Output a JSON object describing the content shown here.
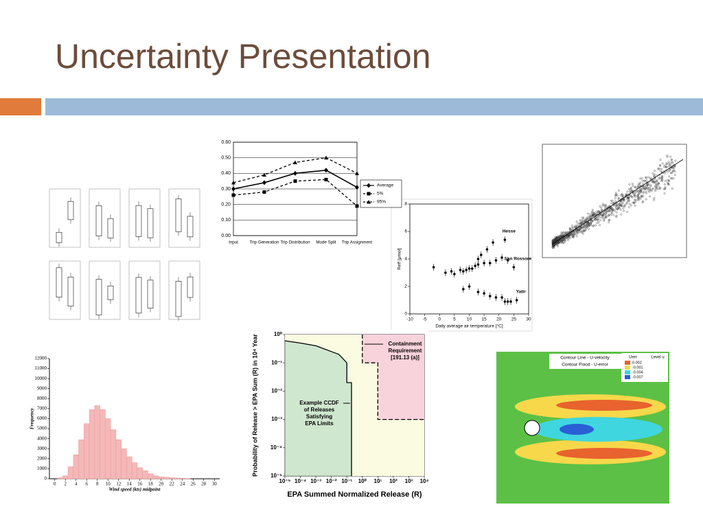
{
  "title": "Uncertainty Presentation",
  "chart_data": [
    {
      "type": "line",
      "categories": [
        "Input",
        "Trip Generation",
        "Trip Distribution",
        "Mode Split",
        "Trip Assignment"
      ],
      "series": [
        {
          "name": "Average",
          "color": "#000000",
          "marker": "diamond",
          "dash": "solid",
          "values": [
            0.3,
            0.34,
            0.4,
            0.42,
            0.31
          ]
        },
        {
          "name": "5%",
          "color": "#000000",
          "marker": "square",
          "dash": "dashed",
          "values": [
            0.26,
            0.28,
            0.35,
            0.36,
            0.19
          ]
        },
        {
          "name": "95%",
          "color": "#000000",
          "marker": "triangle",
          "dash": "dashed",
          "values": [
            0.34,
            0.39,
            0.47,
            0.5,
            0.4
          ]
        }
      ],
      "ylim": [
        0,
        0.6
      ],
      "yticks": [
        {
          "value": 0,
          "label": "0.00"
        },
        {
          "value": 0.1,
          "label": "0.10"
        },
        {
          "value": 0.2,
          "label": "0.20"
        },
        {
          "value": 0.3,
          "label": "0.30"
        },
        {
          "value": 0.4,
          "label": "0.40"
        },
        {
          "value": 0.5,
          "label": "0.50"
        },
        {
          "value": 0.6,
          "label": "0.60"
        }
      ],
      "grid": true,
      "legend": "right"
    },
    {
      "type": "histogram",
      "xlabel": "Wind speed (kts) midpoint",
      "ylabel": "Frequency",
      "color": "#f4b8b8",
      "bins": [
        0.5,
        1.5,
        2.5,
        3.5,
        4.5,
        5.5,
        6.5,
        7.5,
        8.5,
        9.5,
        10.5,
        11.5,
        12.5,
        13.5,
        14.5,
        15.5,
        16.5,
        17.5,
        18.5,
        19.5,
        20.5,
        21.5,
        22.5,
        23.5,
        24.5,
        25.5
      ],
      "values": [
        100,
        300,
        1200,
        2400,
        3900,
        5500,
        6900,
        7300,
        6900,
        6000,
        4900,
        3900,
        3000,
        2200,
        1600,
        1100,
        800,
        500,
        300,
        200,
        150,
        100,
        80,
        50,
        30
      ],
      "xlim": [
        -1,
        31
      ],
      "xticks": [
        0,
        2,
        4,
        6,
        8,
        10,
        12,
        14,
        16,
        18,
        20,
        22,
        24,
        26,
        28,
        30
      ],
      "ylim": [
        0,
        12000
      ],
      "yticks": [
        0,
        1000,
        2000,
        3000,
        4000,
        5000,
        6000,
        7000,
        8000,
        9000,
        10000,
        11000,
        12000
      ]
    },
    {
      "type": "scatter",
      "xlabel": "Daily average air temperature [°C]",
      "ylabel": "Reff [μmol]",
      "series": [
        {
          "name": "Hesse",
          "color": "#000000",
          "x": [
            8,
            10,
            12,
            13,
            14,
            16,
            18,
            22
          ],
          "values": [
            3.1,
            3.3,
            3.5,
            4.0,
            4.3,
            4.7,
            5.2,
            5.4
          ]
        },
        {
          "name": "San Rossore",
          "color": "#000000",
          "x": [
            -2,
            2,
            4,
            5,
            7,
            9,
            11,
            13,
            15,
            17,
            19,
            21,
            23,
            25
          ],
          "values": [
            3.4,
            3.0,
            3.1,
            2.9,
            3.2,
            3.2,
            3.3,
            3.6,
            3.7,
            3.7,
            3.9,
            4.1,
            3.9,
            3.4
          ]
        },
        {
          "name": "Yatir",
          "color": "#000000",
          "x": [
            8,
            10,
            13,
            15,
            17,
            19,
            21,
            22,
            23,
            24,
            26
          ],
          "values": [
            1.8,
            2.0,
            1.6,
            1.5,
            1.3,
            1.2,
            1.2,
            0.9,
            0.9,
            0.9,
            1.0
          ]
        }
      ],
      "xlim": [
        -10,
        30
      ],
      "xticks": [
        -10,
        -5,
        0,
        5,
        10,
        15,
        20,
        25,
        30
      ],
      "ylim": [
        0,
        8
      ],
      "yticks": [
        0,
        2,
        4,
        6,
        8
      ]
    },
    {
      "type": "line",
      "xlabel": "EPA Summed Normalized Release (R)",
      "ylabel": "Probability of Release > EPA Sum (R) in 10⁴ Year",
      "xlog": true,
      "ylog": true,
      "series": [
        {
          "color": "#000000",
          "dash": "solid",
          "x": [
            1e-05,
            0.0001,
            0.001,
            0.01,
            0.03,
            0.05,
            0.1,
            0.1,
            0.2,
            0.2
          ],
          "values": [
            0.6,
            0.5,
            0.4,
            0.25,
            0.2,
            0.15,
            0.1,
            0.02,
            0.02,
            1e-05
          ]
        },
        {
          "color": "#000000",
          "dash": "dashed",
          "x": [
            1,
            1,
            10,
            10,
            10000
          ],
          "values": [
            1,
            0.1,
            0.1,
            0.001,
            0.001
          ]
        }
      ],
      "xlim": [
        1e-05,
        10000
      ],
      "ylim": [
        1e-05,
        1
      ],
      "xticks": [
        {
          "value": 1e-05,
          "label": "10⁻⁵"
        },
        {
          "value": 0.0001,
          "label": "10⁻⁴"
        },
        {
          "value": 0.001,
          "label": "10⁻³"
        },
        {
          "value": 0.01,
          "label": "10⁻²"
        },
        {
          "value": 0.1,
          "label": "10⁻¹"
        },
        {
          "value": 1,
          "label": "10⁰"
        },
        {
          "value": 10,
          "label": "10¹"
        },
        {
          "value": 100,
          "label": "10²"
        },
        {
          "value": 1000,
          "label": "10³"
        },
        {
          "value": 10000,
          "label": "10⁴"
        }
      ],
      "yticks": [
        {
          "value": 1,
          "label": "10⁰"
        },
        {
          "value": 0.1,
          "label": "10⁻¹"
        },
        {
          "value": 0.01,
          "label": "10⁻²"
        },
        {
          "value": 0.001,
          "label": "10⁻³"
        },
        {
          "value": 0.0001,
          "label": "10⁻⁴"
        },
        {
          "value": 1e-05,
          "label": "10⁻⁵"
        }
      ],
      "annotations": [
        [
          "Containment",
          "Requirement",
          "[191.13 (a)]"
        ],
        [
          "Example CCDF",
          "of Releases",
          "Satisfying",
          "EPA Limits"
        ]
      ]
    }
  ],
  "contour": {
    "titles": [
      "Contour Line - U-velocity",
      "Contour Flood - U-error"
    ],
    "legend_title": "Uerr",
    "legend": [
      "0.002",
      "-0.001",
      "-0.004",
      "-0.007"
    ],
    "level_title": "Level u"
  }
}
